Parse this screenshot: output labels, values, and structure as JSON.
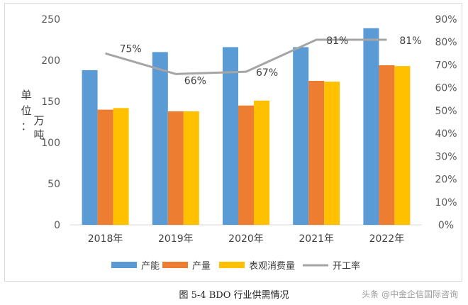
{
  "chart_data": {
    "type": "bar",
    "categories": [
      "2018年",
      "2019年",
      "2020年",
      "2021年",
      "2022年"
    ],
    "series": [
      {
        "name": "产能",
        "values": [
          188,
          210,
          216,
          216,
          239
        ],
        "color": "#5B9BD5",
        "axis": "left"
      },
      {
        "name": "产量",
        "values": [
          140,
          138,
          145,
          175,
          194
        ],
        "color": "#ED7D31",
        "axis": "left"
      },
      {
        "name": "表观消费量",
        "values": [
          142,
          138,
          151,
          174,
          193
        ],
        "color": "#FFC000",
        "axis": "left"
      }
    ],
    "line_series": {
      "name": "开工率",
      "values": [
        75,
        66,
        67,
        81,
        81
      ],
      "color": "#A5A5A5",
      "axis": "right",
      "labels": [
        "75%",
        "66%",
        "67%",
        "81%",
        "81%"
      ]
    },
    "ylabel": "单位：万吨",
    "ylim": [
      0,
      250
    ],
    "yticks": [
      "0",
      "50",
      "100",
      "150",
      "200",
      "250"
    ],
    "y2lim": [
      0,
      90
    ],
    "y2ticks": [
      "0%",
      "10%",
      "20%",
      "30%",
      "40%",
      "50%",
      "60%",
      "70%",
      "80%",
      "90%"
    ],
    "grid": false,
    "legend_position": "bottom"
  },
  "caption": "图 5-4 BDO 行业供需情况",
  "watermark": "头条 @中金企信国际咨询"
}
